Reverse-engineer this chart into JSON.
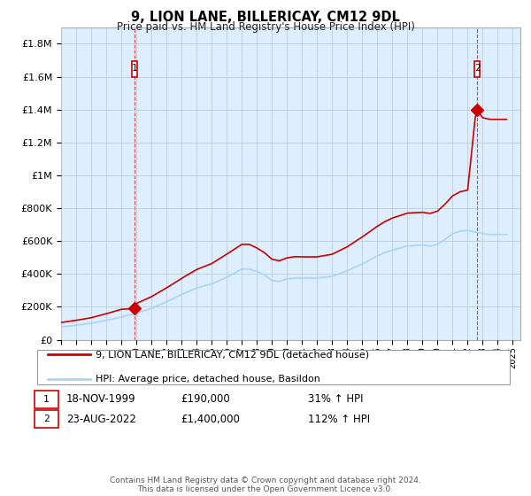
{
  "title": "9, LION LANE, BILLERICAY, CM12 9DL",
  "subtitle": "Price paid vs. HM Land Registry's House Price Index (HPI)",
  "ylabel_values": [
    0,
    200000,
    400000,
    600000,
    800000,
    1000000,
    1200000,
    1400000,
    1600000,
    1800000
  ],
  "ylim": [
    0,
    1900000
  ],
  "xlim_start": 1995.0,
  "xlim_end": 2025.5,
  "hpi_color": "#aad4f5",
  "price_color": "#cc0000",
  "plot_bg_color": "#ddeeff",
  "background_color": "#ffffff",
  "grid_color": "#bbccdd",
  "legend_label_price": "9, LION LANE, BILLERICAY, CM12 9DL (detached house)",
  "legend_label_hpi": "HPI: Average price, detached house, Basildon",
  "annotation1_label": "1",
  "annotation1_date": "18-NOV-1999",
  "annotation1_price": "£190,000",
  "annotation1_hpi": "31% ↑ HPI",
  "annotation2_label": "2",
  "annotation2_date": "23-AUG-2022",
  "annotation2_price": "£1,400,000",
  "annotation2_hpi": "112% ↑ HPI",
  "footer": "Contains HM Land Registry data © Crown copyright and database right 2024.\nThis data is licensed under the Open Government Licence v3.0.",
  "sale1_x": 1999.89,
  "sale1_y": 190000,
  "sale2_x": 2022.645,
  "sale2_y": 1400000,
  "hpi_key_years": [
    1995,
    1996,
    1997,
    1998,
    1999,
    2000,
    2001,
    2002,
    2003,
    2004,
    2005,
    2006,
    2007,
    2007.5,
    2008,
    2008.5,
    2009,
    2009.5,
    2010,
    2010.5,
    2011,
    2012,
    2013,
    2014,
    2015,
    2016,
    2016.5,
    2017,
    2018,
    2019,
    2019.5,
    2020,
    2020.5,
    2021,
    2021.5,
    2022,
    2022.5,
    2023,
    2023.5,
    2024,
    2024.5
  ],
  "hpi_key_vals": [
    78000,
    88000,
    100000,
    118000,
    138000,
    162000,
    190000,
    230000,
    275000,
    315000,
    340000,
    380000,
    430000,
    430000,
    415000,
    395000,
    360000,
    355000,
    370000,
    375000,
    375000,
    375000,
    385000,
    420000,
    460000,
    510000,
    530000,
    545000,
    570000,
    575000,
    570000,
    580000,
    610000,
    645000,
    660000,
    665000,
    655000,
    645000,
    640000,
    640000,
    640000
  ],
  "price_key_years": [
    1995,
    1996,
    1997,
    1998,
    1999,
    1999.89,
    2000,
    2001,
    2002,
    2003,
    2004,
    2005,
    2006,
    2007,
    2007.5,
    2008,
    2008.5,
    2009,
    2009.5,
    2010,
    2010.5,
    2011,
    2012,
    2013,
    2014,
    2015,
    2016,
    2016.5,
    2017,
    2018,
    2019,
    2019.5,
    2020,
    2020.5,
    2021,
    2021.5,
    2022,
    2022.5,
    2022.645,
    2022.75,
    2023,
    2023.5,
    2024,
    2024.5
  ],
  "price_key_vals": [
    105000,
    118000,
    134000,
    158000,
    185000,
    190000,
    220000,
    262000,
    315000,
    373000,
    427000,
    463000,
    520000,
    580000,
    580000,
    558000,
    530000,
    490000,
    480000,
    498000,
    505000,
    504000,
    504000,
    520000,
    565000,
    625000,
    690000,
    718000,
    740000,
    770000,
    775000,
    768000,
    782000,
    825000,
    875000,
    900000,
    910000,
    1350000,
    1400000,
    1380000,
    1350000,
    1340000,
    1340000,
    1340000
  ]
}
